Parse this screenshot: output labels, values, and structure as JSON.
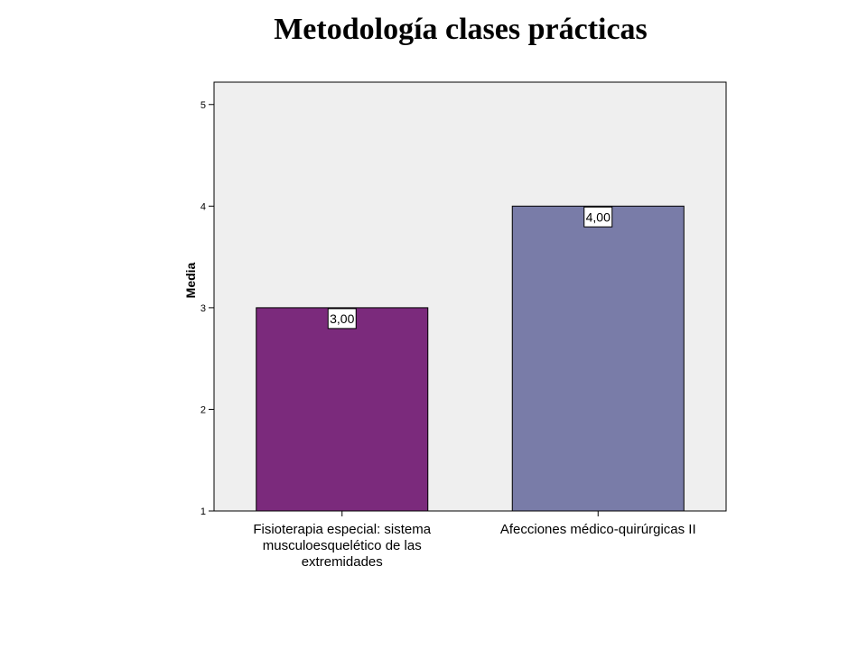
{
  "page": {
    "title": "Metodología clases prácticas"
  },
  "chart_data": {
    "type": "bar",
    "title": "Metodología clases prácticas",
    "ylabel": "Media",
    "xlabel": "",
    "ylim": [
      1,
      5.22
    ],
    "yticks": [
      1,
      2,
      3,
      4,
      5
    ],
    "grid": false,
    "legend": "none",
    "categories": [
      [
        "Fisioterapia especial: sistema",
        "musculoesquelético de las",
        "extremidades"
      ],
      [
        "Afecciones médico-quirúrgicas II"
      ]
    ],
    "values": [
      3.0,
      4.0
    ],
    "data_labels": [
      "3,00",
      "4,00"
    ],
    "colors": [
      "#7b2a7c",
      "#797ca8"
    ],
    "plot_background": "#efefef",
    "bar_outline": "#000000"
  }
}
